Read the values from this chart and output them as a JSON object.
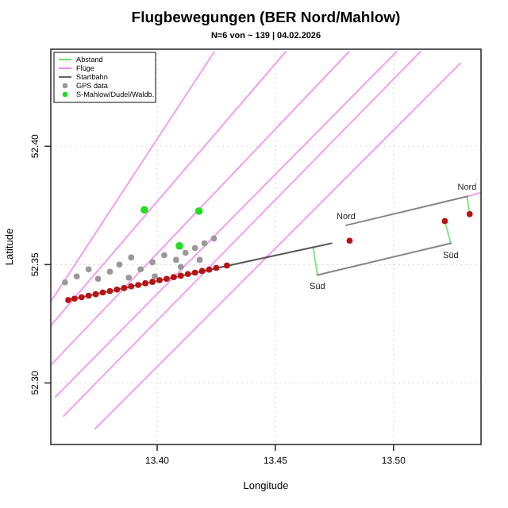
{
  "chart_data": {
    "type": "scatter",
    "title": "Flugbewegungen (BER Nord/Mahlow)",
    "subtitle": "N=6 von ~ 139 | 04.02.2026",
    "xlabel": "Longitude",
    "ylabel": "Latitude",
    "xlim": [
      13.355,
      13.537
    ],
    "ylim": [
      52.274,
      52.441
    ],
    "xticks": [
      {
        "value": 13.4,
        "label": "13.40"
      },
      {
        "value": 13.45,
        "label": "13.45"
      },
      {
        "value": 13.5,
        "label": "13.50"
      }
    ],
    "yticks": [
      {
        "value": 52.3,
        "label": "52.30"
      },
      {
        "value": 52.35,
        "label": "52.35"
      },
      {
        "value": 52.4,
        "label": "52.40"
      }
    ],
    "grid": true,
    "legend": "top left",
    "series": [
      {
        "name": "Abstand",
        "type": "line",
        "color": "#66dd66",
        "x": [
          13.466,
          13.4678
        ],
        "values": [
          52.3572,
          52.3456
        ]
      },
      {
        "type": "line",
        "color": "#66dd66",
        "x": [
          13.5217,
          13.5242
        ],
        "values": [
          52.3684,
          52.359
        ]
      },
      {
        "type": "line",
        "color": "#66dd66",
        "x": [
          13.5311,
          13.5322
        ],
        "values": [
          52.3788,
          52.3712
        ]
      },
      {
        "name": "Flüge",
        "type": "line",
        "color": "#ee88ee",
        "x": [
          13.355,
          13.4242
        ],
        "values": [
          52.3344,
          52.44
        ]
      },
      {
        "type": "line",
        "color": "#ee88ee",
        "x": [
          13.355,
          13.4544
        ],
        "values": [
          52.3243,
          52.44
        ]
      },
      {
        "type": "line",
        "color": "#ee88ee",
        "x": [
          13.355,
          13.4812
        ],
        "values": [
          52.3075,
          52.44
        ]
      },
      {
        "type": "line",
        "color": "#ee88ee",
        "x": [
          13.357,
          13.5013
        ],
        "values": [
          52.2941,
          52.44
        ]
      },
      {
        "type": "line",
        "color": "#ee88ee",
        "x": [
          13.3604,
          13.5114
        ],
        "values": [
          52.286,
          52.44
        ]
      },
      {
        "type": "line",
        "color": "#ee88ee",
        "x": [
          13.3738,
          13.5282
        ],
        "values": [
          52.2807,
          52.435
        ]
      },
      {
        "type": "line",
        "color": "#ee88ee",
        "x": [
          13.5311,
          13.537
        ],
        "values": [
          52.3788,
          52.3805
        ]
      },
      {
        "name": "Startbahn",
        "type": "line",
        "color": "#666666",
        "x": [
          13.4799,
          13.5311
        ],
        "values": [
          52.3666,
          52.3788
        ]
      },
      {
        "type": "line",
        "color": "#666666",
        "x": [
          13.4678,
          13.5242
        ],
        "values": [
          52.3456,
          52.359
        ]
      },
      {
        "type": "line",
        "color": "#333333",
        "x": [
          13.3624,
          13.4738
        ],
        "values": [
          52.335,
          52.359
        ]
      },
      {
        "name": "GPS data",
        "color": "#999999",
        "marker": "circle",
        "x": [
          13.361,
          13.366,
          13.371,
          13.375,
          13.38,
          13.384,
          13.389,
          13.393,
          13.398,
          13.403,
          13.408,
          13.412,
          13.416,
          13.42,
          13.424,
          13.388,
          13.399,
          13.41,
          13.418
        ],
        "values": [
          52.3425,
          52.345,
          52.348,
          52.344,
          52.347,
          52.35,
          52.353,
          52.348,
          52.351,
          52.354,
          52.352,
          52.355,
          52.357,
          52.359,
          52.361,
          52.3445,
          52.345,
          52.349,
          52.352
        ]
      },
      {
        "color": "#bb1111",
        "marker": "circle",
        "x": [
          13.3624,
          13.365,
          13.368,
          13.371,
          13.374,
          13.377,
          13.38,
          13.383,
          13.386,
          13.389,
          13.392,
          13.395,
          13.398,
          13.401,
          13.404,
          13.407,
          13.41,
          13.413,
          13.416,
          13.419,
          13.422,
          13.425,
          13.4295,
          13.4814,
          13.5217,
          13.5322
        ],
        "values": [
          52.335,
          52.3356,
          52.3362,
          52.3369,
          52.3375,
          52.3382,
          52.3388,
          52.3395,
          52.3401,
          52.3408,
          52.3414,
          52.3421,
          52.3427,
          52.3434,
          52.344,
          52.3447,
          52.3453,
          52.346,
          52.3466,
          52.3473,
          52.3479,
          52.3486,
          52.3496,
          52.3601,
          52.3684,
          52.3713
        ]
      },
      {
        "name": "S-Mahlow/Dudel/Waldb.",
        "color": "#22dd22",
        "marker": "circle",
        "x": [
          13.3946,
          13.4177,
          13.4094
        ],
        "values": [
          52.3731,
          52.3726,
          52.3579
        ]
      }
    ],
    "annotations": [
      {
        "text": "Nord",
        "x": 13.4799,
        "y": 52.3666
      },
      {
        "text": "Nord",
        "x": 13.5311,
        "y": 52.3788
      },
      {
        "text": "Süd",
        "x": 13.4678,
        "y": 52.3456
      },
      {
        "text": "Süd",
        "x": 13.5242,
        "y": 52.359
      }
    ]
  }
}
